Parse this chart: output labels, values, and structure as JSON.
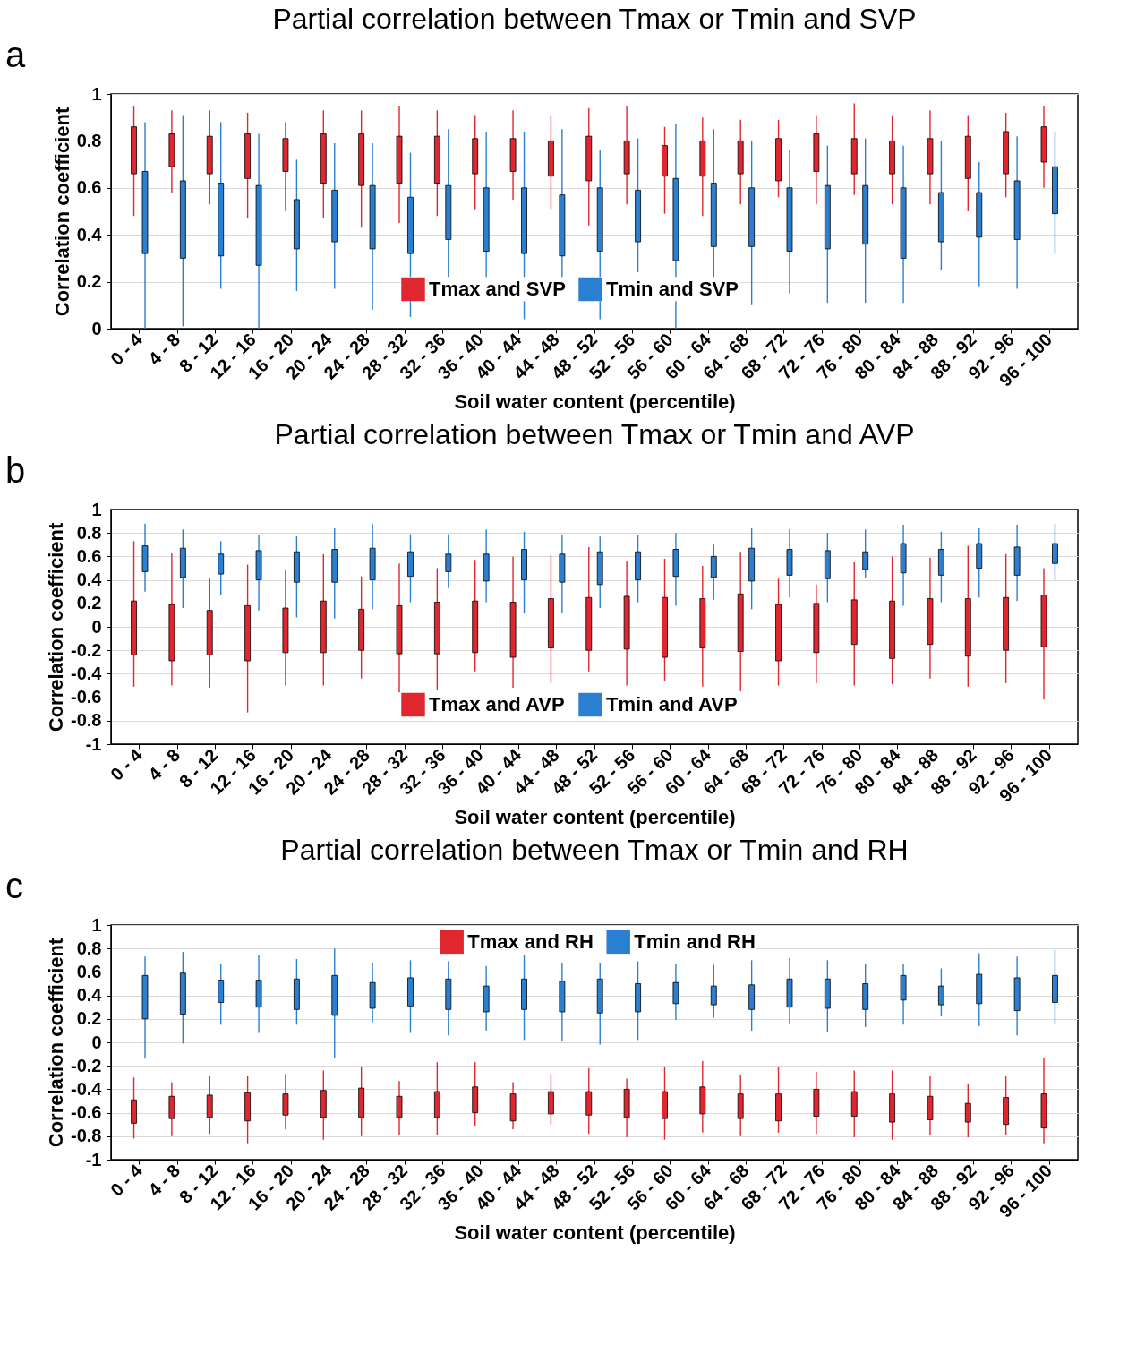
{
  "chart_data": [
    {
      "type": "box",
      "title": "Partial correlation between Tmax or Tmin and SVP",
      "xlabel": "Soil water content (percentile)",
      "ylabel": "Correlation coefficient",
      "annotations": [
        "a"
      ],
      "categories": [
        "0 - 4",
        "4 - 8",
        "8 - 12",
        "12 - 16",
        "16 - 20",
        "20 - 24",
        "24 - 28",
        "28 - 32",
        "32 - 36",
        "36 - 40",
        "40 - 44",
        "44 - 48",
        "48 - 52",
        "52 - 56",
        "56 - 60",
        "60 - 64",
        "64 - 68",
        "68 - 72",
        "72 - 76",
        "76 - 80",
        "80 - 84",
        "84 - 88",
        "88 - 92",
        "92 - 96",
        "96 - 100"
      ],
      "ylim": [
        0,
        1
      ],
      "yticks": [
        0,
        0.2,
        0.4,
        0.6,
        0.8,
        1
      ],
      "grid": "y",
      "legend": "bottom",
      "series": [
        {
          "name": "Tmax and SVP",
          "color": "#e0262f",
          "boxes": [
            {
              "low": 0.48,
              "q1": 0.66,
              "q3": 0.86,
              "high": 0.95
            },
            {
              "low": 0.58,
              "q1": 0.69,
              "q3": 0.83,
              "high": 0.93
            },
            {
              "low": 0.53,
              "q1": 0.66,
              "q3": 0.82,
              "high": 0.93
            },
            {
              "low": 0.47,
              "q1": 0.64,
              "q3": 0.83,
              "high": 0.92
            },
            {
              "low": 0.5,
              "q1": 0.67,
              "q3": 0.81,
              "high": 0.88
            },
            {
              "low": 0.47,
              "q1": 0.62,
              "q3": 0.83,
              "high": 0.93
            },
            {
              "low": 0.43,
              "q1": 0.61,
              "q3": 0.83,
              "high": 0.93
            },
            {
              "low": 0.45,
              "q1": 0.62,
              "q3": 0.82,
              "high": 0.95
            },
            {
              "low": 0.48,
              "q1": 0.62,
              "q3": 0.82,
              "high": 0.93
            },
            {
              "low": 0.51,
              "q1": 0.66,
              "q3": 0.81,
              "high": 0.91
            },
            {
              "low": 0.55,
              "q1": 0.67,
              "q3": 0.81,
              "high": 0.93
            },
            {
              "low": 0.51,
              "q1": 0.65,
              "q3": 0.8,
              "high": 0.91
            },
            {
              "low": 0.44,
              "q1": 0.63,
              "q3": 0.82,
              "high": 0.94
            },
            {
              "low": 0.53,
              "q1": 0.66,
              "q3": 0.8,
              "high": 0.95
            },
            {
              "low": 0.49,
              "q1": 0.65,
              "q3": 0.78,
              "high": 0.86
            },
            {
              "low": 0.48,
              "q1": 0.65,
              "q3": 0.8,
              "high": 0.9
            },
            {
              "low": 0.53,
              "q1": 0.66,
              "q3": 0.8,
              "high": 0.89
            },
            {
              "low": 0.56,
              "q1": 0.63,
              "q3": 0.81,
              "high": 0.89
            },
            {
              "low": 0.53,
              "q1": 0.67,
              "q3": 0.83,
              "high": 0.91
            },
            {
              "low": 0.57,
              "q1": 0.66,
              "q3": 0.81,
              "high": 0.96
            },
            {
              "low": 0.53,
              "q1": 0.66,
              "q3": 0.8,
              "high": 0.91
            },
            {
              "low": 0.53,
              "q1": 0.66,
              "q3": 0.81,
              "high": 0.93
            },
            {
              "low": 0.5,
              "q1": 0.64,
              "q3": 0.82,
              "high": 0.91
            },
            {
              "low": 0.56,
              "q1": 0.66,
              "q3": 0.84,
              "high": 0.92
            },
            {
              "low": 0.6,
              "q1": 0.71,
              "q3": 0.86,
              "high": 0.95
            }
          ]
        },
        {
          "name": "Tmin and SVP",
          "color": "#2b7fd0",
          "boxes": [
            {
              "low": 0,
              "q1": 0.32,
              "q3": 0.67,
              "high": 0.88
            },
            {
              "low": 0.01,
              "q1": 0.3,
              "q3": 0.63,
              "high": 0.91
            },
            {
              "low": 0.17,
              "q1": 0.31,
              "q3": 0.62,
              "high": 0.88
            },
            {
              "low": 0,
              "q1": 0.27,
              "q3": 0.61,
              "high": 0.83
            },
            {
              "low": 0.16,
              "q1": 0.34,
              "q3": 0.55,
              "high": 0.72
            },
            {
              "low": 0.17,
              "q1": 0.37,
              "q3": 0.59,
              "high": 0.79
            },
            {
              "low": 0.08,
              "q1": 0.34,
              "q3": 0.61,
              "high": 0.79
            },
            {
              "low": 0.05,
              "q1": 0.32,
              "q3": 0.56,
              "high": 0.75
            },
            {
              "low": 0.21,
              "q1": 0.38,
              "q3": 0.61,
              "high": 0.85
            },
            {
              "low": 0.15,
              "q1": 0.33,
              "q3": 0.6,
              "high": 0.84
            },
            {
              "low": 0.04,
              "q1": 0.32,
              "q3": 0.6,
              "high": 0.84
            },
            {
              "low": 0.13,
              "q1": 0.31,
              "q3": 0.57,
              "high": 0.85
            },
            {
              "low": 0.04,
              "q1": 0.33,
              "q3": 0.6,
              "high": 0.76
            },
            {
              "low": 0.24,
              "q1": 0.37,
              "q3": 0.59,
              "high": 0.81
            },
            {
              "low": 0,
              "q1": 0.29,
              "q3": 0.64,
              "high": 0.87
            },
            {
              "low": 0.16,
              "q1": 0.35,
              "q3": 0.62,
              "high": 0.85
            },
            {
              "low": 0.1,
              "q1": 0.35,
              "q3": 0.6,
              "high": 0.8
            },
            {
              "low": 0.15,
              "q1": 0.33,
              "q3": 0.6,
              "high": 0.76
            },
            {
              "low": 0.11,
              "q1": 0.34,
              "q3": 0.61,
              "high": 0.78
            },
            {
              "low": 0.11,
              "q1": 0.36,
              "q3": 0.61,
              "high": 0.81
            },
            {
              "low": 0.11,
              "q1": 0.3,
              "q3": 0.6,
              "high": 0.78
            },
            {
              "low": 0.25,
              "q1": 0.37,
              "q3": 0.58,
              "high": 0.8
            },
            {
              "low": 0.18,
              "q1": 0.39,
              "q3": 0.58,
              "high": 0.71
            },
            {
              "low": 0.17,
              "q1": 0.38,
              "q3": 0.63,
              "high": 0.82
            },
            {
              "low": 0.32,
              "q1": 0.49,
              "q3": 0.69,
              "high": 0.84
            }
          ]
        }
      ]
    },
    {
      "type": "box",
      "title": "Partial correlation between Tmax or Tmin and AVP",
      "xlabel": "Soil water content (percentile)",
      "ylabel": "Correlation coefficient",
      "annotations": [
        "b"
      ],
      "categories": [
        "0 - 4",
        "4 - 8",
        "8 - 12",
        "12 - 16",
        "16 - 20",
        "20 - 24",
        "24 - 28",
        "28 - 32",
        "32 - 36",
        "36 - 40",
        "40 - 44",
        "44 - 48",
        "48 - 52",
        "52 - 56",
        "56 - 60",
        "60 - 64",
        "64 - 68",
        "68 - 72",
        "72 - 76",
        "76 - 80",
        "80 - 84",
        "84 - 88",
        "88 - 92",
        "92 - 96",
        "96 - 100"
      ],
      "ylim": [
        -1,
        1
      ],
      "yticks": [
        -1,
        -0.8,
        -0.6,
        -0.4,
        -0.2,
        0,
        0.2,
        0.4,
        0.6,
        0.8,
        1
      ],
      "grid": "y",
      "legend": "bottom",
      "series": [
        {
          "name": "Tmax and AVP",
          "color": "#e0262f",
          "boxes": [
            {
              "low": -0.51,
              "q1": -0.24,
              "q3": 0.22,
              "high": 0.73
            },
            {
              "low": -0.5,
              "q1": -0.29,
              "q3": 0.19,
              "high": 0.63
            },
            {
              "low": -0.52,
              "q1": -0.24,
              "q3": 0.14,
              "high": 0.41
            },
            {
              "low": -0.73,
              "q1": -0.29,
              "q3": 0.18,
              "high": 0.53
            },
            {
              "low": -0.5,
              "q1": -0.22,
              "q3": 0.16,
              "high": 0.48
            },
            {
              "low": -0.5,
              "q1": -0.22,
              "q3": 0.22,
              "high": 0.62
            },
            {
              "low": -0.44,
              "q1": -0.2,
              "q3": 0.15,
              "high": 0.43
            },
            {
              "low": -0.56,
              "q1": -0.23,
              "q3": 0.18,
              "high": 0.54
            },
            {
              "low": -0.54,
              "q1": -0.23,
              "q3": 0.21,
              "high": 0.5
            },
            {
              "low": -0.38,
              "q1": -0.22,
              "q3": 0.22,
              "high": 0.57
            },
            {
              "low": -0.52,
              "q1": -0.26,
              "q3": 0.21,
              "high": 0.6
            },
            {
              "low": -0.48,
              "q1": -0.18,
              "q3": 0.24,
              "high": 0.61
            },
            {
              "low": -0.38,
              "q1": -0.2,
              "q3": 0.25,
              "high": 0.68
            },
            {
              "low": -0.5,
              "q1": -0.19,
              "q3": 0.26,
              "high": 0.56
            },
            {
              "low": -0.46,
              "q1": -0.26,
              "q3": 0.25,
              "high": 0.58
            },
            {
              "low": -0.51,
              "q1": -0.18,
              "q3": 0.24,
              "high": 0.52
            },
            {
              "low": -0.55,
              "q1": -0.21,
              "q3": 0.28,
              "high": 0.64
            },
            {
              "low": -0.5,
              "q1": -0.29,
              "q3": 0.19,
              "high": 0.41
            },
            {
              "low": -0.48,
              "q1": -0.22,
              "q3": 0.2,
              "high": 0.36
            },
            {
              "low": -0.5,
              "q1": -0.15,
              "q3": 0.23,
              "high": 0.55
            },
            {
              "low": -0.49,
              "q1": -0.27,
              "q3": 0.22,
              "high": 0.6
            },
            {
              "low": -0.44,
              "q1": -0.15,
              "q3": 0.24,
              "high": 0.59
            },
            {
              "low": -0.51,
              "q1": -0.25,
              "q3": 0.24,
              "high": 0.69
            },
            {
              "low": -0.48,
              "q1": -0.2,
              "q3": 0.25,
              "high": 0.62
            },
            {
              "low": -0.62,
              "q1": -0.17,
              "q3": 0.27,
              "high": 0.5
            }
          ]
        },
        {
          "name": "Tmin and AVP",
          "color": "#2b7fd0",
          "boxes": [
            {
              "low": 0.3,
              "q1": 0.47,
              "q3": 0.69,
              "high": 0.88
            },
            {
              "low": 0.16,
              "q1": 0.42,
              "q3": 0.67,
              "high": 0.83
            },
            {
              "low": 0.27,
              "q1": 0.45,
              "q3": 0.62,
              "high": 0.73
            },
            {
              "low": 0.14,
              "q1": 0.4,
              "q3": 0.65,
              "high": 0.78
            },
            {
              "low": 0.08,
              "q1": 0.38,
              "q3": 0.64,
              "high": 0.77
            },
            {
              "low": 0.07,
              "q1": 0.38,
              "q3": 0.66,
              "high": 0.84
            },
            {
              "low": 0.15,
              "q1": 0.4,
              "q3": 0.67,
              "high": 0.88
            },
            {
              "low": 0.21,
              "q1": 0.43,
              "q3": 0.64,
              "high": 0.79
            },
            {
              "low": 0.33,
              "q1": 0.47,
              "q3": 0.62,
              "high": 0.79
            },
            {
              "low": 0.21,
              "q1": 0.39,
              "q3": 0.62,
              "high": 0.83
            },
            {
              "low": 0.12,
              "q1": 0.4,
              "q3": 0.66,
              "high": 0.81
            },
            {
              "low": 0.12,
              "q1": 0.38,
              "q3": 0.62,
              "high": 0.78
            },
            {
              "low": 0.16,
              "q1": 0.36,
              "q3": 0.64,
              "high": 0.77
            },
            {
              "low": 0.21,
              "q1": 0.4,
              "q3": 0.64,
              "high": 0.78
            },
            {
              "low": 0.18,
              "q1": 0.43,
              "q3": 0.66,
              "high": 0.8
            },
            {
              "low": 0.23,
              "q1": 0.42,
              "q3": 0.6,
              "high": 0.7
            },
            {
              "low": 0.15,
              "q1": 0.39,
              "q3": 0.67,
              "high": 0.84
            },
            {
              "low": 0.25,
              "q1": 0.44,
              "q3": 0.66,
              "high": 0.83
            },
            {
              "low": 0.21,
              "q1": 0.41,
              "q3": 0.65,
              "high": 0.8
            },
            {
              "low": 0.42,
              "q1": 0.49,
              "q3": 0.64,
              "high": 0.83
            },
            {
              "low": 0.18,
              "q1": 0.46,
              "q3": 0.71,
              "high": 0.87
            },
            {
              "low": 0.21,
              "q1": 0.44,
              "q3": 0.66,
              "high": 0.81
            },
            {
              "low": 0.25,
              "q1": 0.5,
              "q3": 0.71,
              "high": 0.84
            },
            {
              "low": 0.22,
              "q1": 0.44,
              "q3": 0.68,
              "high": 0.87
            },
            {
              "low": 0.4,
              "q1": 0.54,
              "q3": 0.71,
              "high": 0.88
            }
          ]
        }
      ]
    },
    {
      "type": "box",
      "title": "Partial correlation between Tmax or Tmin and RH",
      "xlabel": "Soil water content (percentile)",
      "ylabel": "Correlation coefficient",
      "annotations": [
        "c"
      ],
      "categories": [
        "0 - 4",
        "4 - 8",
        "8 - 12",
        "12 - 16",
        "16 - 20",
        "20 - 24",
        "24 - 28",
        "28 - 32",
        "32 - 36",
        "36 - 40",
        "40 - 44",
        "44 - 48",
        "48 - 52",
        "52 - 56",
        "56 - 60",
        "60 - 64",
        "64 - 68",
        "68 - 72",
        "72 - 76",
        "76 - 80",
        "80 - 84",
        "84 - 88",
        "88 - 92",
        "92 - 96",
        "96 - 100"
      ],
      "ylim": [
        -1,
        1
      ],
      "yticks": [
        -1,
        -0.8,
        -0.6,
        -0.4,
        -0.2,
        0,
        0.2,
        0.4,
        0.6,
        0.8,
        1
      ],
      "grid": "y",
      "legend": "top",
      "series": [
        {
          "name": "Tmax and RH",
          "color": "#e0262f",
          "boxes": [
            {
              "low": -0.82,
              "q1": -0.69,
              "q3": -0.49,
              "high": -0.3
            },
            {
              "low": -0.8,
              "q1": -0.65,
              "q3": -0.46,
              "high": -0.34
            },
            {
              "low": -0.78,
              "q1": -0.64,
              "q3": -0.45,
              "high": -0.29
            },
            {
              "low": -0.86,
              "q1": -0.67,
              "q3": -0.43,
              "high": -0.29
            },
            {
              "low": -0.74,
              "q1": -0.62,
              "q3": -0.44,
              "high": -0.27
            },
            {
              "low": -0.83,
              "q1": -0.64,
              "q3": -0.41,
              "high": -0.24
            },
            {
              "low": -0.8,
              "q1": -0.64,
              "q3": -0.39,
              "high": -0.21
            },
            {
              "low": -0.79,
              "q1": -0.64,
              "q3": -0.46,
              "high": -0.33
            },
            {
              "low": -0.79,
              "q1": -0.64,
              "q3": -0.42,
              "high": -0.17
            },
            {
              "low": -0.71,
              "q1": -0.6,
              "q3": -0.38,
              "high": -0.17
            },
            {
              "low": -0.74,
              "q1": -0.67,
              "q3": -0.44,
              "high": -0.34
            },
            {
              "low": -0.7,
              "q1": -0.61,
              "q3": -0.42,
              "high": -0.27
            },
            {
              "low": -0.78,
              "q1": -0.62,
              "q3": -0.42,
              "high": -0.22
            },
            {
              "low": -0.81,
              "q1": -0.64,
              "q3": -0.4,
              "high": -0.31
            },
            {
              "low": -0.83,
              "q1": -0.65,
              "q3": -0.42,
              "high": -0.21
            },
            {
              "low": -0.77,
              "q1": -0.61,
              "q3": -0.38,
              "high": -0.16
            },
            {
              "low": -0.8,
              "q1": -0.65,
              "q3": -0.44,
              "high": -0.28
            },
            {
              "low": -0.77,
              "q1": -0.67,
              "q3": -0.44,
              "high": -0.21
            },
            {
              "low": -0.78,
              "q1": -0.63,
              "q3": -0.4,
              "high": -0.25
            },
            {
              "low": -0.81,
              "q1": -0.63,
              "q3": -0.42,
              "high": -0.24
            },
            {
              "low": -0.83,
              "q1": -0.68,
              "q3": -0.44,
              "high": -0.24
            },
            {
              "low": -0.79,
              "q1": -0.66,
              "q3": -0.46,
              "high": -0.29
            },
            {
              "low": -0.81,
              "q1": -0.68,
              "q3": -0.52,
              "high": -0.35
            },
            {
              "low": -0.79,
              "q1": -0.7,
              "q3": -0.47,
              "high": -0.29
            },
            {
              "low": -0.86,
              "q1": -0.73,
              "q3": -0.44,
              "high": -0.13
            }
          ]
        },
        {
          "name": "Tmin and RH",
          "color": "#2b7fd0",
          "boxes": [
            {
              "low": -0.14,
              "q1": 0.2,
              "q3": 0.57,
              "high": 0.73
            },
            {
              "low": -0.01,
              "q1": 0.24,
              "q3": 0.59,
              "high": 0.77
            },
            {
              "low": 0.15,
              "q1": 0.34,
              "q3": 0.53,
              "high": 0.67
            },
            {
              "low": 0.08,
              "q1": 0.3,
              "q3": 0.53,
              "high": 0.74
            },
            {
              "low": 0.15,
              "q1": 0.28,
              "q3": 0.54,
              "high": 0.71
            },
            {
              "low": -0.13,
              "q1": 0.23,
              "q3": 0.57,
              "high": 0.8
            },
            {
              "low": 0.17,
              "q1": 0.29,
              "q3": 0.51,
              "high": 0.68
            },
            {
              "low": 0.08,
              "q1": 0.31,
              "q3": 0.55,
              "high": 0.7
            },
            {
              "low": 0.06,
              "q1": 0.28,
              "q3": 0.54,
              "high": 0.69
            },
            {
              "low": 0.1,
              "q1": 0.26,
              "q3": 0.48,
              "high": 0.65
            },
            {
              "low": 0.02,
              "q1": 0.28,
              "q3": 0.54,
              "high": 0.74
            },
            {
              "low": 0.01,
              "q1": 0.26,
              "q3": 0.52,
              "high": 0.68
            },
            {
              "low": -0.02,
              "q1": 0.25,
              "q3": 0.54,
              "high": 0.68
            },
            {
              "low": 0.02,
              "q1": 0.26,
              "q3": 0.5,
              "high": 0.69
            },
            {
              "low": 0.19,
              "q1": 0.33,
              "q3": 0.51,
              "high": 0.67
            },
            {
              "low": 0.21,
              "q1": 0.32,
              "q3": 0.48,
              "high": 0.66
            },
            {
              "low": 0.1,
              "q1": 0.28,
              "q3": 0.49,
              "high": 0.7
            },
            {
              "low": 0.16,
              "q1": 0.3,
              "q3": 0.54,
              "high": 0.72
            },
            {
              "low": 0.09,
              "q1": 0.29,
              "q3": 0.54,
              "high": 0.7
            },
            {
              "low": 0.13,
              "q1": 0.28,
              "q3": 0.5,
              "high": 0.67
            },
            {
              "low": 0.15,
              "q1": 0.36,
              "q3": 0.57,
              "high": 0.67
            },
            {
              "low": 0.22,
              "q1": 0.32,
              "q3": 0.48,
              "high": 0.63
            },
            {
              "low": 0.14,
              "q1": 0.33,
              "q3": 0.58,
              "high": 0.76
            },
            {
              "low": 0.06,
              "q1": 0.27,
              "q3": 0.55,
              "high": 0.73
            },
            {
              "low": 0.15,
              "q1": 0.34,
              "q3": 0.57,
              "high": 0.79
            }
          ]
        }
      ]
    }
  ]
}
